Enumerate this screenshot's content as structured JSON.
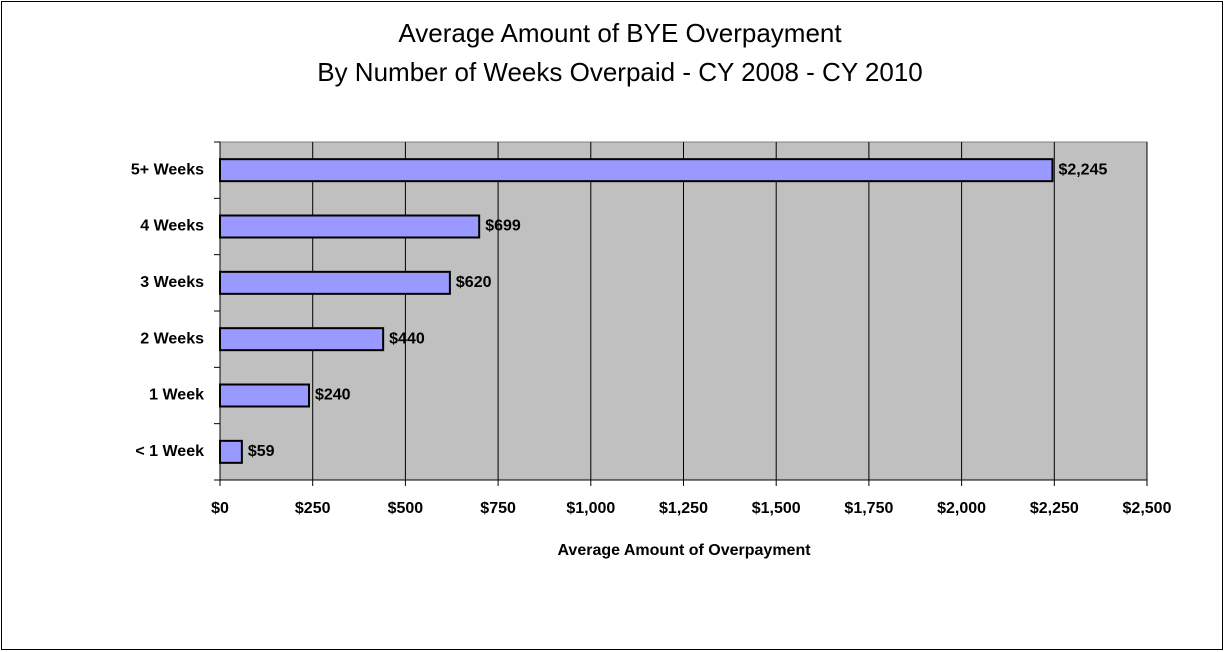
{
  "chart_data": {
    "type": "hbar",
    "title": "Average Amount of BYE Overpayment",
    "subtitle": "By Number of Weeks Overpaid - CY 2008 - CY 2010",
    "x_label": "Average Amount of Overpayment",
    "categories": [
      "5+ Weeks",
      "4 Weeks",
      "3 Weeks",
      "2 Weeks",
      "1 Week",
      "< 1 Week"
    ],
    "values": [
      2245,
      699,
      620,
      440,
      240,
      59
    ],
    "value_labels": [
      "$2,245",
      "$699",
      "$620",
      "$440",
      "$240",
      "$59"
    ],
    "color": "#9999ff",
    "plot_background": "#c0c0c0",
    "grid": true,
    "xlim": [
      0,
      2500
    ],
    "xticks": [
      {
        "value": 0,
        "label": "$0"
      },
      {
        "value": 250,
        "label": "$250"
      },
      {
        "value": 500,
        "label": "$500"
      },
      {
        "value": 750,
        "label": "$750"
      },
      {
        "value": 1000,
        "label": "$1,000"
      },
      {
        "value": 1250,
        "label": "$1,250"
      },
      {
        "value": 1500,
        "label": "$1,500"
      },
      {
        "value": 1750,
        "label": "$1,750"
      },
      {
        "value": 2000,
        "label": "$2,000"
      },
      {
        "value": 2250,
        "label": "$2,250"
      },
      {
        "value": 2500,
        "label": "$2,500"
      }
    ]
  }
}
